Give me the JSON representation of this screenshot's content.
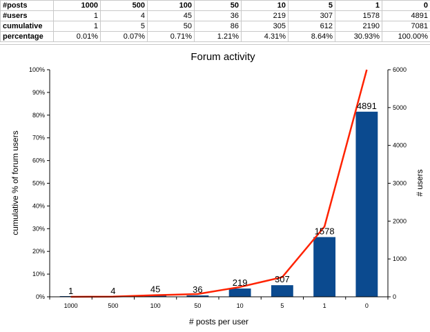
{
  "table": {
    "rows": [
      {
        "label": "#posts",
        "cells": [
          "1000",
          "500",
          "100",
          "50",
          "10",
          "5",
          "1",
          "0"
        ]
      },
      {
        "label": "#users",
        "cells": [
          "1",
          "4",
          "45",
          "36",
          "219",
          "307",
          "1578",
          "4891"
        ]
      },
      {
        "label": "cumulative",
        "cells": [
          "1",
          "5",
          "50",
          "86",
          "305",
          "612",
          "2190",
          "7081"
        ]
      },
      {
        "label": "percentage",
        "cells": [
          "0.01%",
          "0.07%",
          "0.71%",
          "1.21%",
          "4.31%",
          "8.64%",
          "30.93%",
          "100.00%"
        ]
      }
    ]
  },
  "chart_data": {
    "type": "bar",
    "title": "Forum activity",
    "xlabel": "# posts per user",
    "ylabel_left": "cumulative % of forum users",
    "ylabel_right": "# users",
    "categories": [
      "1000",
      "500",
      "100",
      "50",
      "10",
      "5",
      "1",
      "0"
    ],
    "y_left_ticks": [
      "0%",
      "10%",
      "20%",
      "30%",
      "40%",
      "50%",
      "60%",
      "70%",
      "80%",
      "90%",
      "100%"
    ],
    "y_right_ticks": [
      "0",
      "1000",
      "2000",
      "3000",
      "4000",
      "5000",
      "6000"
    ],
    "ylim_left": [
      0,
      100
    ],
    "ylim_right": [
      0,
      6000
    ],
    "grid": false,
    "series": [
      {
        "type": "bar",
        "axis": "right",
        "values": [
          1,
          4,
          45,
          36,
          219,
          307,
          1578,
          4891
        ],
        "color": "#0b4a8f"
      },
      {
        "type": "line",
        "axis": "left",
        "values": [
          0.01,
          0.07,
          0.71,
          1.21,
          4.31,
          8.64,
          30.93,
          100.0
        ],
        "color": "#ff2200"
      }
    ],
    "data_labels": [
      "1",
      "4",
      "45",
      "36",
      "219",
      "307",
      "1578",
      "4891"
    ]
  }
}
